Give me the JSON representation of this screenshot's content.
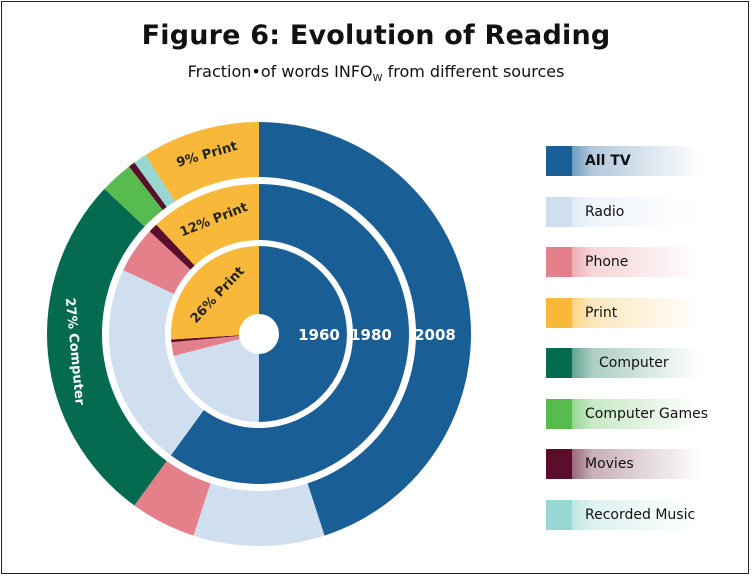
{
  "title": "Figure 6:  Evolution of Reading",
  "subtitle_main": "Fraction•of words INFO",
  "subtitle_sub": "W",
  "subtitle_tail": " from different sources",
  "chart_data": {
    "type": "pie",
    "subtype": "multi-ring donut",
    "rings": [
      {
        "label": "1960",
        "slices": [
          {
            "name": "All TV",
            "value": 50
          },
          {
            "name": "Radio",
            "value": 21
          },
          {
            "name": "Phone",
            "value": 2.5
          },
          {
            "name": "Movies",
            "value": 0.5
          },
          {
            "name": "Print",
            "value": 26
          }
        ]
      },
      {
        "label": "1980",
        "slices": [
          {
            "name": "All TV",
            "value": 60
          },
          {
            "name": "Radio",
            "value": 22
          },
          {
            "name": "Phone",
            "value": 5
          },
          {
            "name": "Movies",
            "value": 1
          },
          {
            "name": "Print",
            "value": 12
          }
        ]
      },
      {
        "label": "2008",
        "slices": [
          {
            "name": "All TV",
            "value": 45
          },
          {
            "name": "Radio",
            "value": 10
          },
          {
            "name": "Phone",
            "value": 5
          },
          {
            "name": "Computer",
            "value": 27
          },
          {
            "name": "Computer Games",
            "value": 2.5
          },
          {
            "name": "Movies",
            "value": 0.5
          },
          {
            "name": "Recorded Music",
            "value": 1
          },
          {
            "name": "Print",
            "value": 9
          }
        ]
      }
    ],
    "slice_labels": [
      "26% Print",
      "12% Print",
      "9% Print",
      "27% Computer"
    ],
    "legend_position": "right"
  },
  "legend": [
    {
      "name": "All TV",
      "color": "#1a5e96",
      "bold": true,
      "indent": false
    },
    {
      "name": "Radio",
      "color": "#cfdff0",
      "bold": false,
      "indent": false
    },
    {
      "name": "Phone",
      "color": "#e4808a",
      "bold": false,
      "indent": false
    },
    {
      "name": "Print",
      "color": "#f8b93a",
      "bold": false,
      "indent": false
    },
    {
      "name": "Computer",
      "color": "#056b50",
      "bold": false,
      "indent": true
    },
    {
      "name": "Computer Games",
      "color": "#57bb50",
      "bold": false,
      "indent": false
    },
    {
      "name": "Movies",
      "color": "#5a0e2c",
      "bold": false,
      "indent": false
    },
    {
      "name": "Recorded Music",
      "color": "#97d6d1",
      "bold": false,
      "indent": false
    }
  ]
}
